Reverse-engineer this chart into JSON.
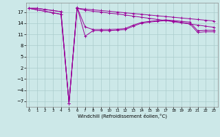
{
  "xlabel": "Windchill (Refroidissement éolien,°C)",
  "bg_color": "#cce8e8",
  "grid_color": "#aacccc",
  "line_color": "#990099",
  "x_ticks": [
    0,
    1,
    2,
    3,
    4,
    5,
    6,
    7,
    8,
    9,
    10,
    11,
    12,
    13,
    14,
    15,
    16,
    17,
    18,
    19,
    20,
    21,
    22,
    23
  ],
  "y_ticks": [
    -7,
    -4,
    -1,
    2,
    5,
    8,
    11,
    14,
    17
  ],
  "ylim": [
    -8.5,
    19.5
  ],
  "xlim": [
    -0.3,
    23.5
  ],
  "line1": [
    18.0,
    18.0,
    17.7,
    17.4,
    17.1,
    -7.5,
    18.0,
    17.8,
    17.6,
    17.4,
    17.2,
    17.0,
    16.8,
    16.6,
    16.4,
    16.2,
    16.0,
    15.8,
    15.6,
    15.4,
    15.2,
    15.0,
    14.8,
    14.6
  ],
  "line2": [
    18.0,
    18.0,
    17.7,
    17.4,
    17.1,
    -7.5,
    18.0,
    17.5,
    17.2,
    17.0,
    16.7,
    16.5,
    16.2,
    15.9,
    15.6,
    15.3,
    15.0,
    14.7,
    14.4,
    14.1,
    13.8,
    13.5,
    13.2,
    12.9
  ],
  "line3": [
    18.0,
    17.6,
    17.2,
    16.8,
    16.4,
    -7.5,
    18.3,
    13.0,
    12.3,
    12.3,
    12.3,
    12.4,
    12.6,
    13.5,
    14.2,
    14.5,
    14.7,
    14.9,
    14.7,
    14.5,
    14.3,
    12.0,
    12.1,
    12.1
  ],
  "line4": [
    18.0,
    17.6,
    17.2,
    16.8,
    16.4,
    -7.5,
    18.3,
    10.5,
    12.0,
    12.0,
    12.0,
    12.1,
    12.3,
    13.2,
    14.0,
    14.3,
    14.5,
    14.7,
    14.5,
    14.2,
    13.9,
    11.5,
    11.7,
    11.7
  ]
}
